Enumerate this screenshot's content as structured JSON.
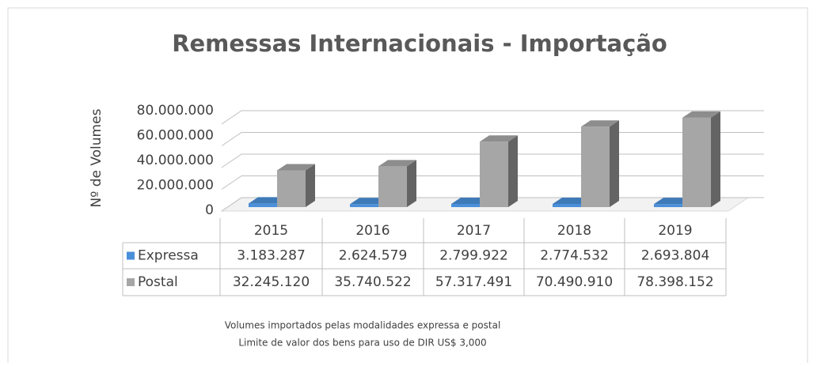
{
  "chart_data": {
    "type": "bar3d",
    "title": "Remessas Internacionais - Importação",
    "y_label": "Nº de Volumes",
    "categories": [
      "2015",
      "2016",
      "2017",
      "2018",
      "2019"
    ],
    "series": [
      {
        "name": "Expressa",
        "color": "#4a8fd9",
        "values": [
          3183287,
          2624579,
          2799922,
          2774532,
          2693804
        ],
        "value_labels": [
          "3.183.287",
          "2.624.579",
          "2.799.922",
          "2.774.532",
          "2.693.804"
        ]
      },
      {
        "name": "Postal",
        "color": "#a6a6a6",
        "values": [
          32245120,
          35740522,
          57317491,
          70490910,
          78398152
        ],
        "value_labels": [
          "32.245.120",
          "35.740.522",
          "57.317.491",
          "70.490.910",
          "78.398.152"
        ]
      }
    ],
    "ylim": [
      0,
      80000000
    ],
    "yticks": [
      0,
      {
        "value": 20000000,
        "label": "20.000.000"
      },
      {
        "value": 40000000,
        "label": "40.000.000"
      },
      {
        "value": 60000000,
        "label": "60.000.000"
      },
      {
        "value": 80000000,
        "label": "80.000.000"
      }
    ],
    "grid": true,
    "notes": [
      "Volumes importados pelas modalidades expressa e postal",
      "Limite de valor dos bens para uso de DIR US$ 3,000"
    ]
  }
}
